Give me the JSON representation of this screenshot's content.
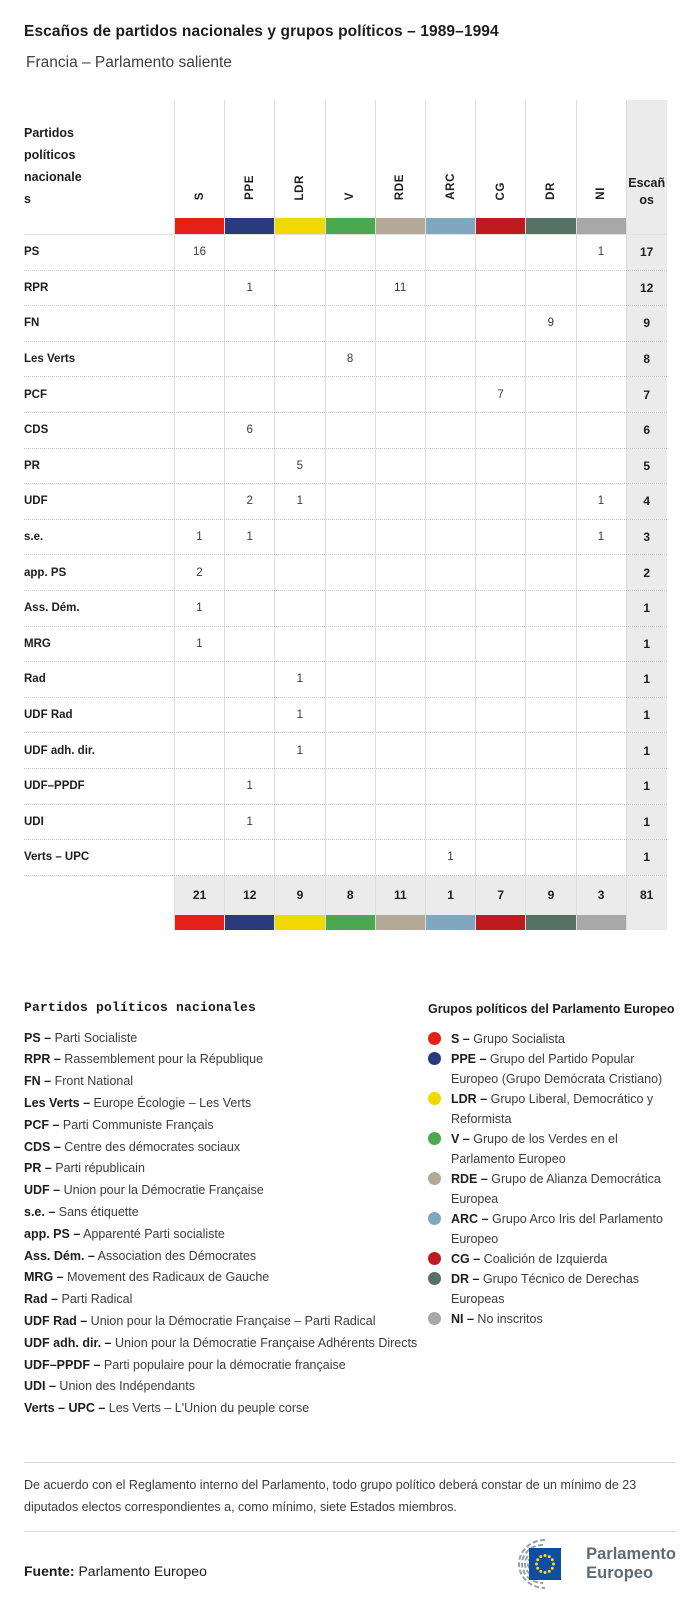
{
  "header": {
    "title": "Escaños de partidos nacionales y grupos políticos – 1989–1994",
    "subtitle": "Francia – Parlamento saliente"
  },
  "chart_data": {
    "type": "table",
    "title": "Escaños de partidos nacionales y grupos políticos – 1989–1994",
    "subtitle": "Francia – Parlamento saliente",
    "corner_label": "Partidos políticos nacionales",
    "seats_label": "Escaños",
    "groups": [
      {
        "id": "S",
        "color": "#e32119"
      },
      {
        "id": "PPE",
        "color": "#2a3b7d"
      },
      {
        "id": "LDR",
        "color": "#f0d800"
      },
      {
        "id": "V",
        "color": "#4aa94e"
      },
      {
        "id": "RDE",
        "color": "#b3a996"
      },
      {
        "id": "ARC",
        "color": "#7fa8c0"
      },
      {
        "id": "CG",
        "color": "#bd1b1e"
      },
      {
        "id": "DR",
        "color": "#567264"
      },
      {
        "id": "NI",
        "color": "#a8a8a8"
      }
    ],
    "rows": [
      {
        "party": "PS",
        "cells": [
          16,
          null,
          null,
          null,
          null,
          null,
          null,
          null,
          1
        ],
        "total": 17
      },
      {
        "party": "RPR",
        "cells": [
          null,
          1,
          null,
          null,
          11,
          null,
          null,
          null,
          null
        ],
        "total": 12
      },
      {
        "party": "FN",
        "cells": [
          null,
          null,
          null,
          null,
          null,
          null,
          null,
          9,
          null
        ],
        "total": 9
      },
      {
        "party": "Les Verts",
        "cells": [
          null,
          null,
          null,
          8,
          null,
          null,
          null,
          null,
          null
        ],
        "total": 8
      },
      {
        "party": "PCF",
        "cells": [
          null,
          null,
          null,
          null,
          null,
          null,
          7,
          null,
          null
        ],
        "total": 7
      },
      {
        "party": "CDS",
        "cells": [
          null,
          6,
          null,
          null,
          null,
          null,
          null,
          null,
          null
        ],
        "total": 6
      },
      {
        "party": "PR",
        "cells": [
          null,
          null,
          5,
          null,
          null,
          null,
          null,
          null,
          null
        ],
        "total": 5
      },
      {
        "party": "UDF",
        "cells": [
          null,
          2,
          1,
          null,
          null,
          null,
          null,
          null,
          1
        ],
        "total": 4
      },
      {
        "party": "s.e.",
        "cells": [
          1,
          1,
          null,
          null,
          null,
          null,
          null,
          null,
          1
        ],
        "total": 3
      },
      {
        "party": "app. PS",
        "cells": [
          2,
          null,
          null,
          null,
          null,
          null,
          null,
          null,
          null
        ],
        "total": 2
      },
      {
        "party": "Ass. Dém.",
        "cells": [
          1,
          null,
          null,
          null,
          null,
          null,
          null,
          null,
          null
        ],
        "total": 1
      },
      {
        "party": "MRG",
        "cells": [
          1,
          null,
          null,
          null,
          null,
          null,
          null,
          null,
          null
        ],
        "total": 1
      },
      {
        "party": "Rad",
        "cells": [
          null,
          null,
          1,
          null,
          null,
          null,
          null,
          null,
          null
        ],
        "total": 1
      },
      {
        "party": "UDF Rad",
        "cells": [
          null,
          null,
          1,
          null,
          null,
          null,
          null,
          null,
          null
        ],
        "total": 1
      },
      {
        "party": "UDF adh. dir.",
        "cells": [
          null,
          null,
          1,
          null,
          null,
          null,
          null,
          null,
          null
        ],
        "total": 1
      },
      {
        "party": "UDF–PPDF",
        "cells": [
          null,
          1,
          null,
          null,
          null,
          null,
          null,
          null,
          null
        ],
        "total": 1
      },
      {
        "party": "UDI",
        "cells": [
          null,
          1,
          null,
          null,
          null,
          null,
          null,
          null,
          null
        ],
        "total": 1
      },
      {
        "party": "Verts – UPC",
        "cells": [
          null,
          null,
          null,
          null,
          null,
          1,
          null,
          null,
          null
        ],
        "total": 1
      }
    ],
    "totals": [
      21,
      12,
      9,
      8,
      11,
      1,
      7,
      9,
      3
    ],
    "grand_total": 81
  },
  "legend_parties": {
    "title": "Partidos políticos nacionales",
    "items": [
      {
        "abbr": "PS –",
        "name": "Parti Socialiste"
      },
      {
        "abbr": "RPR –",
        "name": "Rassemblement pour la République"
      },
      {
        "abbr": "FN –",
        "name": "Front National"
      },
      {
        "abbr": "Les Verts –",
        "name": "Europe Écologie – Les Verts"
      },
      {
        "abbr": "PCF –",
        "name": "Parti Communiste Français"
      },
      {
        "abbr": "CDS –",
        "name": "Centre des démocrates sociaux"
      },
      {
        "abbr": "PR –",
        "name": "Parti républicain"
      },
      {
        "abbr": "UDF –",
        "name": "Union pour la Démocratie Française"
      },
      {
        "abbr": "s.e. –",
        "name": "Sans étiquette"
      },
      {
        "abbr": "app. PS –",
        "name": "Apparenté Parti socialiste"
      },
      {
        "abbr": "Ass. Dém. –",
        "name": "Association des Démocrates"
      },
      {
        "abbr": "MRG –",
        "name": "Movement des Radicaux de Gauche"
      },
      {
        "abbr": "Rad –",
        "name": "Parti Radical"
      },
      {
        "abbr": "UDF Rad –",
        "name": "Union pour la Démocratie Française – Parti Radical"
      },
      {
        "abbr": "UDF adh. dir. –",
        "name": "Union pour la Démocratie Française Adhérents Directs"
      },
      {
        "abbr": "UDF–PPDF –",
        "name": "Parti populaire pour la démocratie française"
      },
      {
        "abbr": "UDI –",
        "name": "Union des Indépendants"
      },
      {
        "abbr": "Verts – UPC –",
        "name": "Les Verts – L'Union du peuple corse"
      }
    ]
  },
  "legend_groups": {
    "title": "Grupos políticos del Parlamento Europeo",
    "items": [
      {
        "abbr": "S –",
        "name": "Grupo Socialista",
        "color": "#e32119"
      },
      {
        "abbr": "PPE –",
        "name": "Grupo del Partido Popular Europeo (Grupo Demócrata Cristiano)",
        "color": "#2a3b7d"
      },
      {
        "abbr": "LDR –",
        "name": "Grupo Liberal, Democrático y Reformista",
        "color": "#f0d800"
      },
      {
        "abbr": "V –",
        "name": "Grupo de los Verdes en el Parlamento Europeo",
        "color": "#4aa94e"
      },
      {
        "abbr": "RDE –",
        "name": "Grupo de Alianza Democrática Europea",
        "color": "#b3a996"
      },
      {
        "abbr": "ARC –",
        "name": "Grupo Arco Iris del Parlamento Europeo",
        "color": "#7fa8c0"
      },
      {
        "abbr": "CG –",
        "name": "Coalición de Izquierda",
        "color": "#bd1b1e"
      },
      {
        "abbr": "DR –",
        "name": "Grupo Técnico de Derechas Europeas",
        "color": "#567264"
      },
      {
        "abbr": "NI –",
        "name": "No inscritos",
        "color": "#a8a8a8"
      }
    ]
  },
  "footnote": "De acuerdo con el Reglamento interno del Parlamento, todo grupo político deberá constar de un mínimo de 23 diputados electos correspondientes a, como mínimo, siete Estados miembros.",
  "source": {
    "label": "Fuente:",
    "value": "Parlamento Europeo"
  },
  "logo": {
    "line1": "Parlamento",
    "line2": "Europeo"
  }
}
